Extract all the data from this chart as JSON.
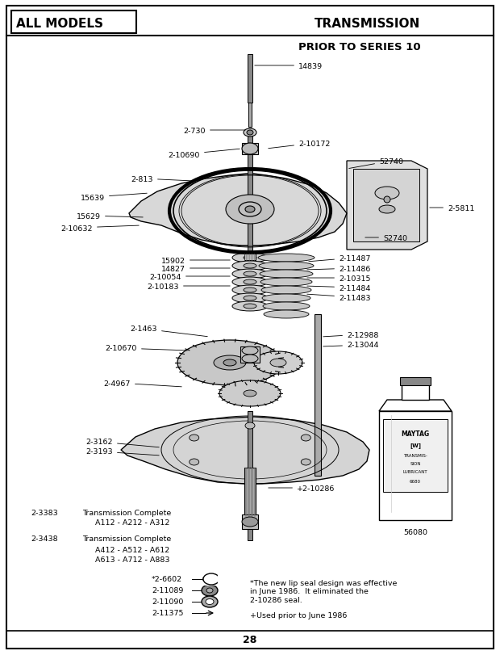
{
  "page_title_left": "ALL MODELS",
  "page_title_right": "TRANSMISSION",
  "subtitle": "PRIOR TO SERIES 10",
  "page_number": "28",
  "bg_color": "#ffffff",
  "note1": "*The new lip seal design was effective\nin June 1986.  It eliminated the\n2-10286 seal.",
  "note2": "+Used prior to June 1986",
  "font_size_header": 11,
  "font_size_subtitle": 9.5,
  "font_size_label": 6.8,
  "font_size_note": 6.8,
  "font_size_pagenum": 9
}
